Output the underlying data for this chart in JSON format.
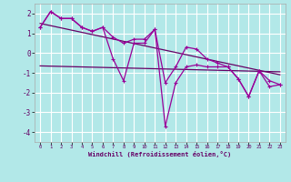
{
  "xlabel": "Windchill (Refroidissement éolien,°C)",
  "background_color": "#b2e8e8",
  "grid_color": "#c8e8e8",
  "line_color": "#990099",
  "line_color2": "#660066",
  "x_hours": [
    0,
    1,
    2,
    3,
    4,
    5,
    6,
    7,
    8,
    9,
    10,
    11,
    12,
    13,
    14,
    15,
    16,
    17,
    18,
    19,
    20,
    21,
    22,
    23
  ],
  "series1": [
    1.3,
    2.1,
    1.75,
    1.75,
    1.3,
    1.1,
    1.3,
    0.8,
    0.5,
    0.7,
    0.7,
    1.2,
    -1.5,
    -0.7,
    0.3,
    0.2,
    -0.3,
    -0.5,
    -0.7,
    -1.3,
    -2.2,
    -0.9,
    -1.4,
    -1.6
  ],
  "series2": [
    1.3,
    2.1,
    1.75,
    1.75,
    1.3,
    1.1,
    1.3,
    -0.3,
    -1.4,
    0.5,
    0.5,
    1.2,
    -3.7,
    -1.5,
    -0.7,
    -0.6,
    -0.7,
    -0.7,
    -0.7,
    -1.3,
    -2.2,
    -0.9,
    -1.7,
    -1.6
  ],
  "trend1_x": [
    0,
    23
  ],
  "trend1_y": [
    1.5,
    -1.1
  ],
  "trend2_x": [
    0,
    23
  ],
  "trend2_y": [
    -0.65,
    -0.95
  ],
  "ylim": [
    -4.5,
    2.5
  ],
  "yticks": [
    -4,
    -3,
    -2,
    -1,
    0,
    1,
    2
  ],
  "xlim": [
    -0.5,
    23.5
  ]
}
